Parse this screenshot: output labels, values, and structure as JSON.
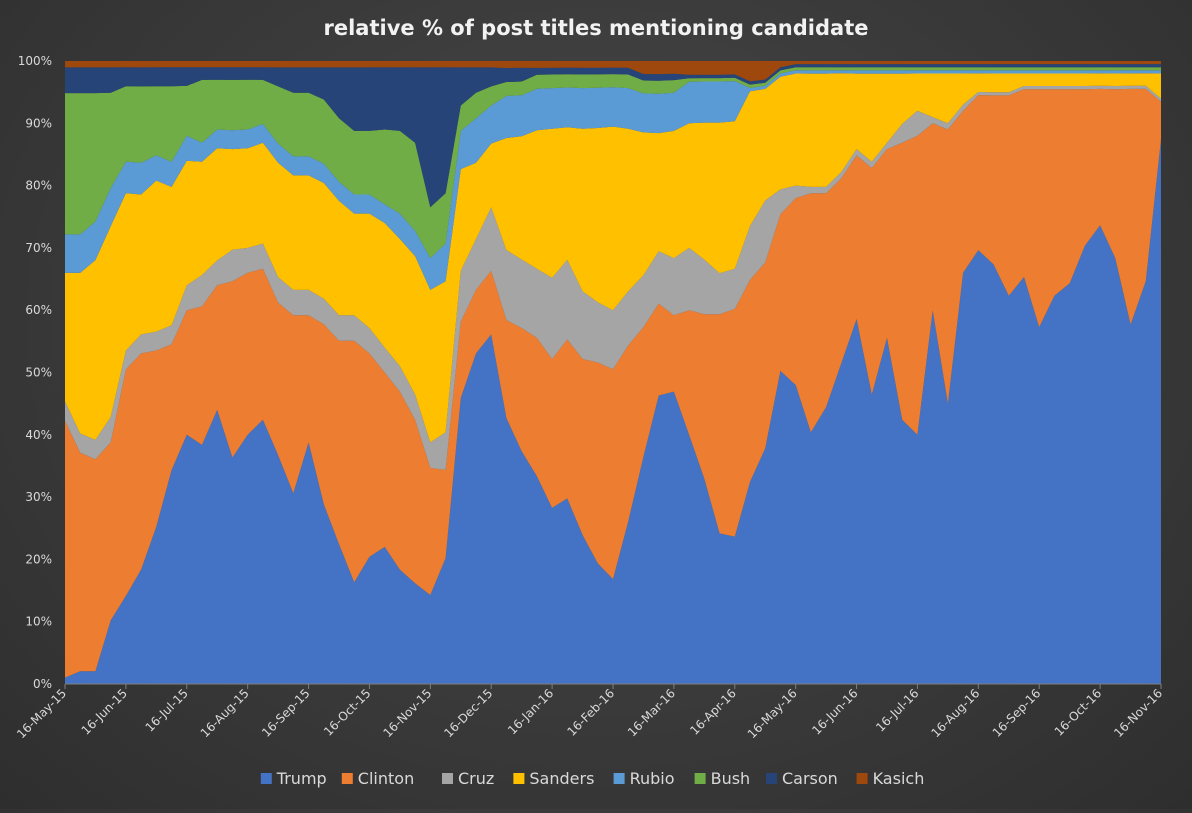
{
  "chart_data": {
    "type": "area",
    "stacked": "100%",
    "title": "relative % of post titles mentioning candidate",
    "xlabel": "",
    "ylabel": "",
    "ylim": [
      0,
      100
    ],
    "y_ticks": [
      "0%",
      "10%",
      "20%",
      "30%",
      "40%",
      "50%",
      "60%",
      "70%",
      "80%",
      "90%",
      "100%"
    ],
    "x_tick_labels": [
      "16-May-15",
      "16-Jun-15",
      "16-Jul-15",
      "16-Aug-15",
      "16-Sep-15",
      "16-Oct-15",
      "16-Nov-15",
      "16-Dec-15",
      "16-Jan-16",
      "16-Feb-16",
      "16-Mar-16",
      "16-Apr-16",
      "16-May-16",
      "16-Jun-16",
      "16-Jul-16",
      "16-Aug-16",
      "16-Sep-16",
      "16-Oct-16",
      "16-Nov-16"
    ],
    "x": [
      "16-May-15",
      "24-May-15",
      "1-Jun-15",
      "8-Jun-15",
      "16-Jun-15",
      "24-Jun-15",
      "1-Jul-15",
      "8-Jul-15",
      "16-Jul-15",
      "24-Jul-15",
      "1-Aug-15",
      "8-Aug-15",
      "16-Aug-15",
      "24-Aug-15",
      "1-Sep-15",
      "8-Sep-15",
      "16-Sep-15",
      "24-Sep-15",
      "1-Oct-15",
      "8-Oct-15",
      "16-Oct-15",
      "24-Oct-15",
      "1-Nov-15",
      "8-Nov-15",
      "16-Nov-15",
      "24-Nov-15",
      "1-Dec-15",
      "8-Dec-15",
      "16-Dec-15",
      "24-Dec-15",
      "1-Jan-16",
      "8-Jan-16",
      "16-Jan-16",
      "24-Jan-16",
      "1-Feb-16",
      "8-Feb-16",
      "16-Feb-16",
      "24-Feb-16",
      "1-Mar-16",
      "8-Mar-16",
      "16-Mar-16",
      "24-Mar-16",
      "1-Apr-16",
      "8-Apr-16",
      "16-Apr-16",
      "24-Apr-16",
      "1-May-16",
      "8-May-16",
      "16-May-16",
      "24-May-16",
      "1-Jun-16",
      "8-Jun-16",
      "16-Jun-16",
      "24-Jun-16",
      "1-Jul-16",
      "8-Jul-16",
      "16-Jul-16",
      "24-Jul-16",
      "1-Aug-16",
      "8-Aug-16",
      "16-Aug-16",
      "24-Aug-16",
      "1-Sep-16",
      "8-Sep-16",
      "16-Sep-16",
      "24-Sep-16",
      "1-Oct-16",
      "8-Oct-16",
      "16-Oct-16",
      "24-Oct-16",
      "1-Nov-16",
      "8-Nov-16",
      "16-Nov-16"
    ],
    "series": [
      {
        "name": "Trump",
        "color": "#4472C4",
        "values": [
          1,
          2,
          2,
          10,
          14,
          18,
          25,
          34,
          40,
          38,
          44,
          36,
          40,
          42,
          36,
          30,
          38,
          28,
          22,
          16,
          20,
          22,
          18,
          16,
          14,
          20,
          45,
          52,
          55,
          38,
          34,
          30,
          26,
          28,
          22,
          18,
          16,
          24,
          35,
          44,
          46,
          36,
          30,
          22,
          22,
          30,
          38,
          50,
          48,
          40,
          44,
          52,
          58,
          46,
          55,
          42,
          40,
          60,
          45,
          66,
          70,
          67,
          62,
          65,
          57,
          62,
          64,
          70,
          74,
          68,
          58,
          65,
          87
        ]
      },
      {
        "name": "Clinton",
        "color": "#ED7D31",
        "values": [
          40,
          34,
          33,
          28,
          36,
          34,
          28,
          20,
          20,
          22,
          20,
          28,
          26,
          24,
          24,
          28,
          20,
          28,
          32,
          38,
          32,
          28,
          28,
          26,
          20,
          14,
          12,
          10,
          10,
          14,
          18,
          20,
          22,
          24,
          26,
          30,
          32,
          26,
          20,
          14,
          12,
          18,
          24,
          32,
          34,
          30,
          30,
          25,
          30,
          38,
          34,
          30,
          26,
          36,
          30,
          44,
          48,
          30,
          44,
          26,
          25,
          27,
          32,
          30,
          38,
          33,
          31,
          25,
          22,
          27,
          38,
          31,
          6
        ]
      },
      {
        "name": "Cruz",
        "color": "#A5A5A5",
        "values": [
          3,
          3,
          3,
          4,
          3,
          3,
          3,
          3,
          4,
          5,
          4,
          5,
          4,
          4,
          4,
          4,
          4,
          4,
          4,
          4,
          4,
          4,
          4,
          4,
          4,
          6,
          8,
          8,
          10,
          10,
          10,
          10,
          12,
          12,
          10,
          9,
          9,
          8,
          8,
          8,
          9,
          9,
          8,
          6,
          6,
          8,
          10,
          4,
          2,
          1,
          1,
          1,
          1,
          1,
          1,
          3,
          4,
          1,
          1,
          1,
          0.5,
          0.5,
          0.5,
          0.5,
          0.5,
          0.5,
          0.5,
          0.5,
          0.5,
          0.5,
          0.5,
          0.5,
          0.5
        ]
      },
      {
        "name": "Sanders",
        "color": "#FFC000",
        "values": [
          20,
          25,
          28,
          30,
          25,
          22,
          24,
          22,
          20,
          18,
          18,
          16,
          16,
          16,
          18,
          18,
          18,
          18,
          18,
          16,
          18,
          20,
          20,
          22,
          24,
          24,
          16,
          12,
          10,
          16,
          18,
          20,
          22,
          20,
          24,
          26,
          28,
          24,
          22,
          18,
          20,
          18,
          20,
          22,
          22,
          20,
          18,
          18,
          18,
          18,
          18,
          16,
          12,
          14,
          11,
          8,
          6,
          7,
          8,
          5,
          3,
          3,
          3,
          2,
          2,
          2,
          2,
          2,
          2,
          2,
          2,
          2,
          4
        ]
      },
      {
        "name": "Rubio",
        "color": "#5B9BD5",
        "values": [
          6,
          6,
          6,
          6,
          5,
          5,
          4,
          4,
          4,
          3,
          3,
          3,
          3,
          3,
          3,
          3,
          3,
          3,
          3,
          3,
          3,
          3,
          4,
          4,
          5,
          6,
          6,
          7,
          6,
          6,
          6,
          6,
          6,
          6,
          6,
          6,
          6,
          6,
          6,
          6,
          6,
          6,
          6,
          6,
          6,
          0.5,
          0.5,
          0.5,
          0.5,
          0.5,
          0.5,
          0.5,
          0.5,
          0.5,
          0.5,
          0.5,
          0.5,
          0.5,
          0.5,
          0.5,
          0.5,
          0.5,
          0.5,
          0.5,
          0.5,
          0.5,
          0.5,
          0.5,
          0.5,
          0.5,
          0.5,
          0.5,
          0.5
        ]
      },
      {
        "name": "Bush",
        "color": "#70AD47",
        "values": [
          22,
          22,
          20,
          15,
          12,
          12,
          11,
          12,
          8,
          10,
          8,
          8,
          8,
          7,
          9,
          10,
          10,
          10,
          10,
          10,
          10,
          12,
          13,
          14,
          8,
          8,
          4,
          4,
          3,
          2,
          2,
          2,
          2,
          2,
          2,
          2,
          2,
          2,
          2,
          2,
          2,
          0.5,
          0.5,
          0.5,
          0.5,
          0.5,
          0.5,
          0.5,
          0.5,
          0.5,
          0.5,
          0.5,
          0.5,
          0.5,
          0.5,
          0.5,
          0.5,
          0.5,
          0.5,
          0.5,
          0.5,
          0.5,
          0.5,
          0.5,
          0.5,
          0.5,
          0.5,
          0.5,
          0.5,
          0.5,
          0.5,
          0.5,
          0.5
        ]
      },
      {
        "name": "Carson",
        "color": "#264478",
        "values": [
          4,
          4,
          4,
          4,
          3,
          3,
          3,
          3,
          3,
          2,
          2,
          2,
          2,
          2,
          3,
          4,
          4,
          5,
          8,
          10,
          10,
          10,
          10,
          12,
          22,
          20,
          6,
          4,
          3,
          2,
          2,
          1,
          1,
          1,
          1,
          1,
          1,
          1,
          1,
          1,
          1,
          0.5,
          0.5,
          0.5,
          0.5,
          0.5,
          0.5,
          0.5,
          0.5,
          0.5,
          0.5,
          0.5,
          0.5,
          0.5,
          0.5,
          0.5,
          0.5,
          0.5,
          0.5,
          0.5,
          0.5,
          0.5,
          0.5,
          0.5,
          0.5,
          0.5,
          0.5,
          0.5,
          0.5,
          0.5,
          0.5,
          0.5,
          0.5
        ]
      },
      {
        "name": "Kasich",
        "color": "#9E480E",
        "values": [
          1,
          1,
          1,
          1,
          1,
          1,
          1,
          1,
          1,
          1,
          1,
          1,
          1,
          1,
          1,
          1,
          1,
          1,
          1,
          1,
          1,
          1,
          1,
          1,
          1,
          1,
          1,
          1,
          1,
          1,
          1,
          1,
          1,
          1,
          1,
          1,
          1,
          1,
          2,
          2,
          2,
          2,
          2,
          2,
          2,
          3,
          3,
          1,
          0.5,
          0.5,
          0.5,
          0.5,
          0.5,
          0.5,
          0.5,
          0.5,
          0.5,
          0.5,
          0.5,
          0.5,
          0.5,
          0.5,
          0.5,
          0.5,
          0.5,
          0.5,
          0.5,
          0.5,
          0.5,
          0.5,
          0.5,
          0.5,
          0.5
        ]
      }
    ],
    "grid": false,
    "legend_position": "bottom"
  }
}
